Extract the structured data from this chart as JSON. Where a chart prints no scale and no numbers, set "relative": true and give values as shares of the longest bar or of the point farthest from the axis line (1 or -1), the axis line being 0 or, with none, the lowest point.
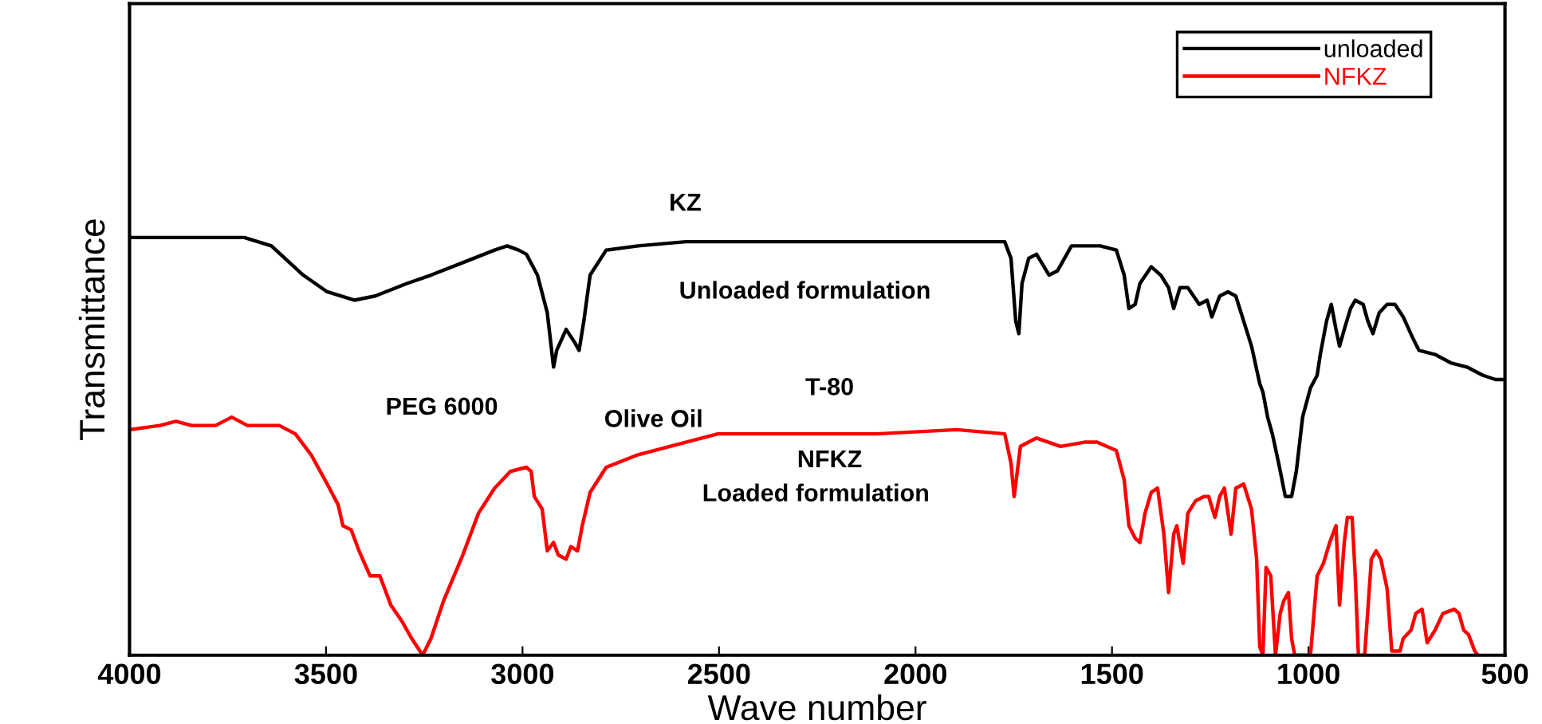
{
  "chart_data": {
    "type": "line",
    "relative": true,
    "xlabel": "Wave number",
    "ylabel": "Transmittance",
    "xlim": [
      4000,
      500
    ],
    "xticks": [
      4000,
      3500,
      3000,
      2500,
      2000,
      1500,
      1000,
      500
    ],
    "grid": false,
    "legend": "top right",
    "marker": "none",
    "line_style": "solid",
    "series": [
      {
        "name": "unloaded",
        "color": "#000000",
        "x": [
          4000,
          3708,
          3639,
          3558,
          3497,
          3428,
          3375,
          3294,
          3233,
          3152,
          3071,
          3039,
          3010,
          2990,
          2962,
          2937,
          2921,
          2913,
          2889,
          2868,
          2856,
          2844,
          2828,
          2787,
          2706,
          2584,
          2301,
          1895,
          1773,
          1757,
          1745,
          1737,
          1729,
          1712,
          1692,
          1660,
          1639,
          1603,
          1530,
          1489,
          1469,
          1457,
          1441,
          1429,
          1400,
          1376,
          1356,
          1343,
          1327,
          1307,
          1278,
          1258,
          1246,
          1226,
          1205,
          1185,
          1165,
          1145,
          1124,
          1116,
          1104,
          1092,
          1076,
          1059,
          1043,
          1031,
          1015,
          995,
          978,
          970,
          954,
          942,
          930,
          921,
          909,
          893,
          881,
          861,
          849,
          836,
          820,
          800,
          780,
          759,
          735,
          719,
          678,
          638,
          597,
          556,
          524,
          504
        ],
        "values": [
          1.0,
          1.0,
          0.98,
          0.91,
          0.87,
          0.85,
          0.86,
          0.89,
          0.91,
          0.94,
          0.97,
          0.98,
          0.97,
          0.96,
          0.91,
          0.82,
          0.69,
          0.73,
          0.78,
          0.75,
          0.73,
          0.8,
          0.91,
          0.97,
          0.98,
          0.99,
          0.99,
          0.99,
          0.99,
          0.95,
          0.8,
          0.77,
          0.89,
          0.95,
          0.96,
          0.91,
          0.92,
          0.98,
          0.98,
          0.97,
          0.91,
          0.83,
          0.84,
          0.89,
          0.93,
          0.91,
          0.88,
          0.83,
          0.88,
          0.88,
          0.84,
          0.85,
          0.81,
          0.86,
          0.87,
          0.86,
          0.8,
          0.74,
          0.65,
          0.63,
          0.57,
          0.53,
          0.46,
          0.38,
          0.38,
          0.44,
          0.57,
          0.64,
          0.67,
          0.72,
          0.8,
          0.84,
          0.78,
          0.74,
          0.78,
          0.83,
          0.85,
          0.84,
          0.8,
          0.77,
          0.82,
          0.84,
          0.84,
          0.81,
          0.76,
          0.73,
          0.72,
          0.7,
          0.69,
          0.67,
          0.66,
          0.66
        ]
      },
      {
        "name": "NFKZ",
        "color": "#ff0000",
        "x": [
          4000,
          3923,
          3882,
          3842,
          3781,
          3740,
          3700,
          3659,
          3619,
          3578,
          3538,
          3497,
          3469,
          3457,
          3436,
          3416,
          3388,
          3363,
          3335,
          3306,
          3282,
          3254,
          3233,
          3201,
          3152,
          3112,
          3071,
          3031,
          2990,
          2978,
          2970,
          2950,
          2937,
          2921,
          2909,
          2889,
          2877,
          2860,
          2848,
          2828,
          2787,
          2706,
          2625,
          2503,
          2301,
          2098,
          1895,
          1773,
          1757,
          1749,
          1733,
          1692,
          1631,
          1570,
          1538,
          1489,
          1469,
          1457,
          1441,
          1429,
          1416,
          1400,
          1384,
          1368,
          1356,
          1343,
          1335,
          1319,
          1307,
          1287,
          1266,
          1254,
          1238,
          1226,
          1214,
          1197,
          1185,
          1165,
          1145,
          1132,
          1124,
          1116,
          1108,
          1096,
          1084,
          1072,
          1063,
          1051,
          1043,
          1035,
          995,
          978,
          962,
          946,
          930,
          921,
          909,
          901,
          889,
          881,
          873,
          857,
          840,
          828,
          816,
          800,
          788,
          767,
          759,
          739,
          727,
          711,
          698,
          678,
          658,
          629,
          617,
          605,
          593,
          577,
          569
        ],
        "values": [
          0.54,
          0.55,
          0.56,
          0.55,
          0.55,
          0.57,
          0.55,
          0.55,
          0.55,
          0.53,
          0.48,
          0.41,
          0.36,
          0.31,
          0.3,
          0.25,
          0.19,
          0.19,
          0.12,
          0.08,
          0.04,
          0.0,
          0.04,
          0.13,
          0.24,
          0.34,
          0.4,
          0.44,
          0.45,
          0.44,
          0.38,
          0.35,
          0.25,
          0.27,
          0.24,
          0.23,
          0.26,
          0.25,
          0.31,
          0.39,
          0.45,
          0.48,
          0.5,
          0.53,
          0.53,
          0.53,
          0.54,
          0.53,
          0.46,
          0.38,
          0.5,
          0.52,
          0.5,
          0.51,
          0.51,
          0.49,
          0.42,
          0.31,
          0.28,
          0.27,
          0.34,
          0.39,
          0.4,
          0.29,
          0.15,
          0.29,
          0.31,
          0.22,
          0.34,
          0.37,
          0.38,
          0.38,
          0.33,
          0.38,
          0.4,
          0.29,
          0.4,
          0.41,
          0.35,
          0.23,
          0.02,
          0.0,
          0.21,
          0.19,
          0.0,
          0.1,
          0.13,
          0.15,
          0.04,
          0.0,
          0.0,
          0.19,
          0.22,
          0.27,
          0.31,
          0.12,
          0.27,
          0.33,
          0.33,
          0.19,
          0.0,
          0.0,
          0.23,
          0.25,
          0.23,
          0.16,
          0.01,
          0.01,
          0.04,
          0.06,
          0.1,
          0.11,
          0.03,
          0.06,
          0.1,
          0.11,
          0.1,
          0.06,
          0.05,
          0.01,
          0.0
        ]
      }
    ],
    "annotations": [
      "KZ",
      "Unloaded formulation",
      "PEG 6000",
      "Olive Oil",
      "T-80",
      "NFKZ",
      "Loaded formulation"
    ]
  }
}
